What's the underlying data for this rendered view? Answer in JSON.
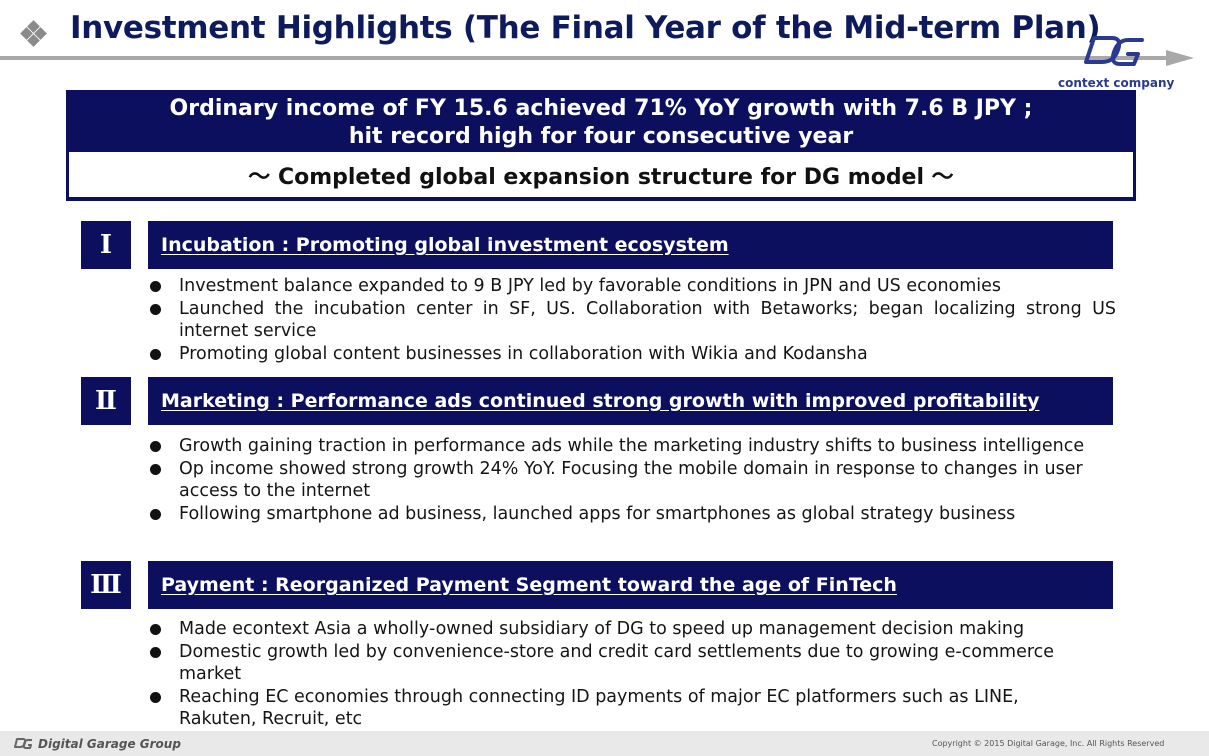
{
  "header": {
    "title": "Investment Highlights (The Final Year of the Mid-term Plan)",
    "logo_tagline": "context company",
    "icon": "diamond-cluster-icon"
  },
  "summary": {
    "line1": "Ordinary income of FY 15.6 achieved 71% YoY growth with 7.6 B JPY ;",
    "line2": "hit record high for four consecutive year",
    "subtitle": "～ Completed global expansion structure for DG model ～"
  },
  "sections": [
    {
      "numeral": "Ⅰ",
      "title": "Incubation : Promoting  global  investment  ecosystem",
      "bullets": [
        "Investment balance expanded to 9 B JPY led by favorable conditions in JPN and US economies",
        "Launched the incubation center in SF, US. Collaboration with Betaworks; began localizing strong US internet service",
        "Promoting global content businesses in collaboration with Wikia and Kodansha"
      ]
    },
    {
      "numeral": "Ⅱ",
      "title": "Marketing : Performance  ads continued  strong growth with improved profitability",
      "bullets": [
        "Growth gaining traction in performance ads while the marketing industry shifts to business intelligence",
        "Op income showed strong growth 24% YoY.  Focusing the mobile domain in response to changes in user access to the internet",
        "Following smartphone ad business, launched apps for smartphones as global strategy business"
      ]
    },
    {
      "numeral": "Ⅲ",
      "title": "Payment : Reorganized  Payment  Segment  toward  the age of FinTech",
      "bullets": [
        "Made econtext Asia a wholly-owned subsidiary of DG to speed up management decision making",
        "Domestic growth led by convenience-store and credit card settlements due to growing e-commerce market",
        "Reaching EC economies through connecting ID payments of major EC platformers such as LINE, Rakuten, Recruit, etc"
      ]
    }
  ],
  "footer": {
    "brand": "Digital Garage Group",
    "copyright": "Copyright © 2015 Digital Garage, Inc. All Rights Reserved"
  },
  "colors": {
    "navy": "#0c0f5e",
    "title_navy": "#0d1a5c",
    "rule_gray": "#a8a8a8",
    "logo_blue": "#2a3b8f"
  }
}
